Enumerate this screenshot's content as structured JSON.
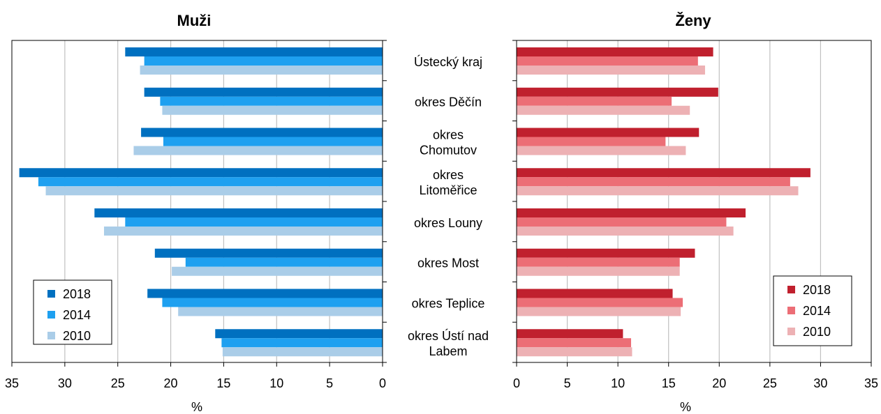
{
  "chart_data": [
    {
      "type": "bar",
      "orientation": "horizontal",
      "x_direction": "reversed",
      "title": "Muži",
      "xlabel": "%",
      "xlim": [
        0,
        35
      ],
      "xticks": [
        "35",
        "30",
        "25",
        "20",
        "15",
        "10",
        "5",
        "0"
      ],
      "grid": true,
      "legend_position": "bottom-left",
      "categories": [
        "Ústecký kraj",
        "okres Děčín",
        "okres Chomutov",
        "okres Litoměřice",
        "okres Louny",
        "okres Most",
        "okres Teplice",
        "okres Ústí nad Labem"
      ],
      "series": [
        {
          "name": "2018",
          "color": "#0070C0",
          "values": [
            24.3,
            22.5,
            22.8,
            34.3,
            27.2,
            21.5,
            22.2,
            15.8
          ]
        },
        {
          "name": "2014",
          "color": "#1EA0F0",
          "values": [
            22.5,
            21.0,
            20.7,
            32.5,
            24.3,
            18.6,
            20.8,
            15.2
          ]
        },
        {
          "name": "2010",
          "color": "#AACDE8",
          "values": [
            22.9,
            20.8,
            23.5,
            31.8,
            26.3,
            19.9,
            19.3,
            15.1
          ]
        }
      ]
    },
    {
      "type": "bar",
      "orientation": "horizontal",
      "title": "Ženy",
      "xlabel": "%",
      "xlim": [
        0,
        35
      ],
      "xticks": [
        "0",
        "5",
        "10",
        "15",
        "20",
        "25",
        "30",
        "35"
      ],
      "grid": true,
      "legend_position": "bottom-right",
      "categories": [
        "Ústecký kraj",
        "okres Děčín",
        "okres Chomutov",
        "okres Litoměřice",
        "okres Louny",
        "okres Most",
        "okres Teplice",
        "okres Ústí nad Labem"
      ],
      "category_lines": [
        [
          "Ústecký kraj"
        ],
        [
          "okres Děčín"
        ],
        [
          "okres",
          "Chomutov"
        ],
        [
          "okres",
          "Litoměřice"
        ],
        [
          "okres Louny"
        ],
        [
          "okres Most"
        ],
        [
          "okres Teplice"
        ],
        [
          "okres Ústí nad",
          "Labem"
        ]
      ],
      "series": [
        {
          "name": "2018",
          "color": "#C0202E",
          "values": [
            19.4,
            19.9,
            18.0,
            29.0,
            22.6,
            17.6,
            15.4,
            10.5
          ]
        },
        {
          "name": "2014",
          "color": "#EC6E76",
          "values": [
            17.9,
            15.3,
            14.7,
            27.0,
            20.7,
            16.1,
            16.4,
            11.3
          ]
        },
        {
          "name": "2010",
          "color": "#EDB1B4",
          "values": [
            18.6,
            17.1,
            16.7,
            27.8,
            21.4,
            16.1,
            16.2,
            11.4
          ]
        }
      ]
    }
  ]
}
